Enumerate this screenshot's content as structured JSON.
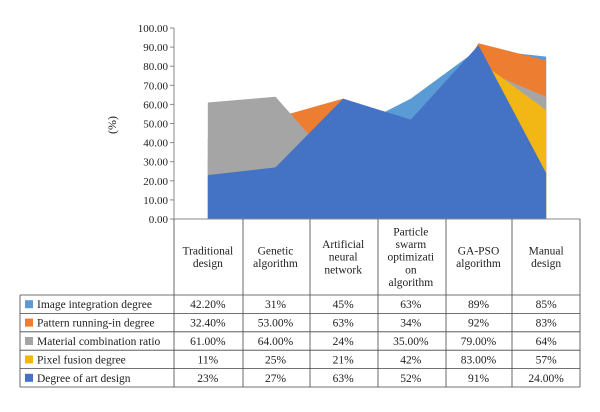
{
  "chart_data": {
    "type": "area",
    "ylabel": "(%)",
    "ylim": [
      0,
      100
    ],
    "y_ticks": [
      "0.00",
      "10.00",
      "20.00",
      "30.00",
      "40.00",
      "50.00",
      "60.00",
      "70.00",
      "80.00",
      "90.00",
      "100.00"
    ],
    "categories": [
      [
        "Traditional",
        "design"
      ],
      [
        "Genetic",
        "algorithm"
      ],
      [
        "Artificial",
        "neural",
        "network"
      ],
      [
        "Particle",
        "swarm",
        "optimizati",
        "on",
        "algorithm"
      ],
      [
        "GA-PSO",
        "algorithm"
      ],
      [
        "Manual",
        "design"
      ]
    ],
    "series": [
      {
        "name": "Image integration degree",
        "color": "#5b9bd5",
        "values": [
          42.2,
          31,
          45,
          63,
          89,
          85
        ],
        "labels": [
          "42.20%",
          "31%",
          "45%",
          "63%",
          "89%",
          "85%"
        ]
      },
      {
        "name": "Pattern running-in degree",
        "color": "#ed7d31",
        "values": [
          32.4,
          53,
          63,
          34,
          92,
          83
        ],
        "labels": [
          "32.40%",
          "53.00%",
          "63%",
          "34%",
          "92%",
          "83%"
        ]
      },
      {
        "name": "Material combination ratio",
        "color": "#a5a5a5",
        "values": [
          61,
          64,
          24,
          35,
          79,
          64
        ],
        "labels": [
          "61.00%",
          "64.00%",
          "24%",
          "35.00%",
          "79.00%",
          "64%"
        ]
      },
      {
        "name": "Pixel fusion degree",
        "color": "#f2b615",
        "values": [
          11,
          25,
          21,
          42,
          83,
          57
        ],
        "labels": [
          "11%",
          "25%",
          "21%",
          "42%",
          "83.00%",
          "57%"
        ]
      },
      {
        "name": "Degree of art design",
        "color": "#4472c4",
        "values": [
          23,
          27,
          63,
          52,
          91,
          24
        ],
        "labels": [
          "23%",
          "27%",
          "63%",
          "52%",
          "91%",
          "24.00%"
        ]
      }
    ],
    "grid": false
  }
}
